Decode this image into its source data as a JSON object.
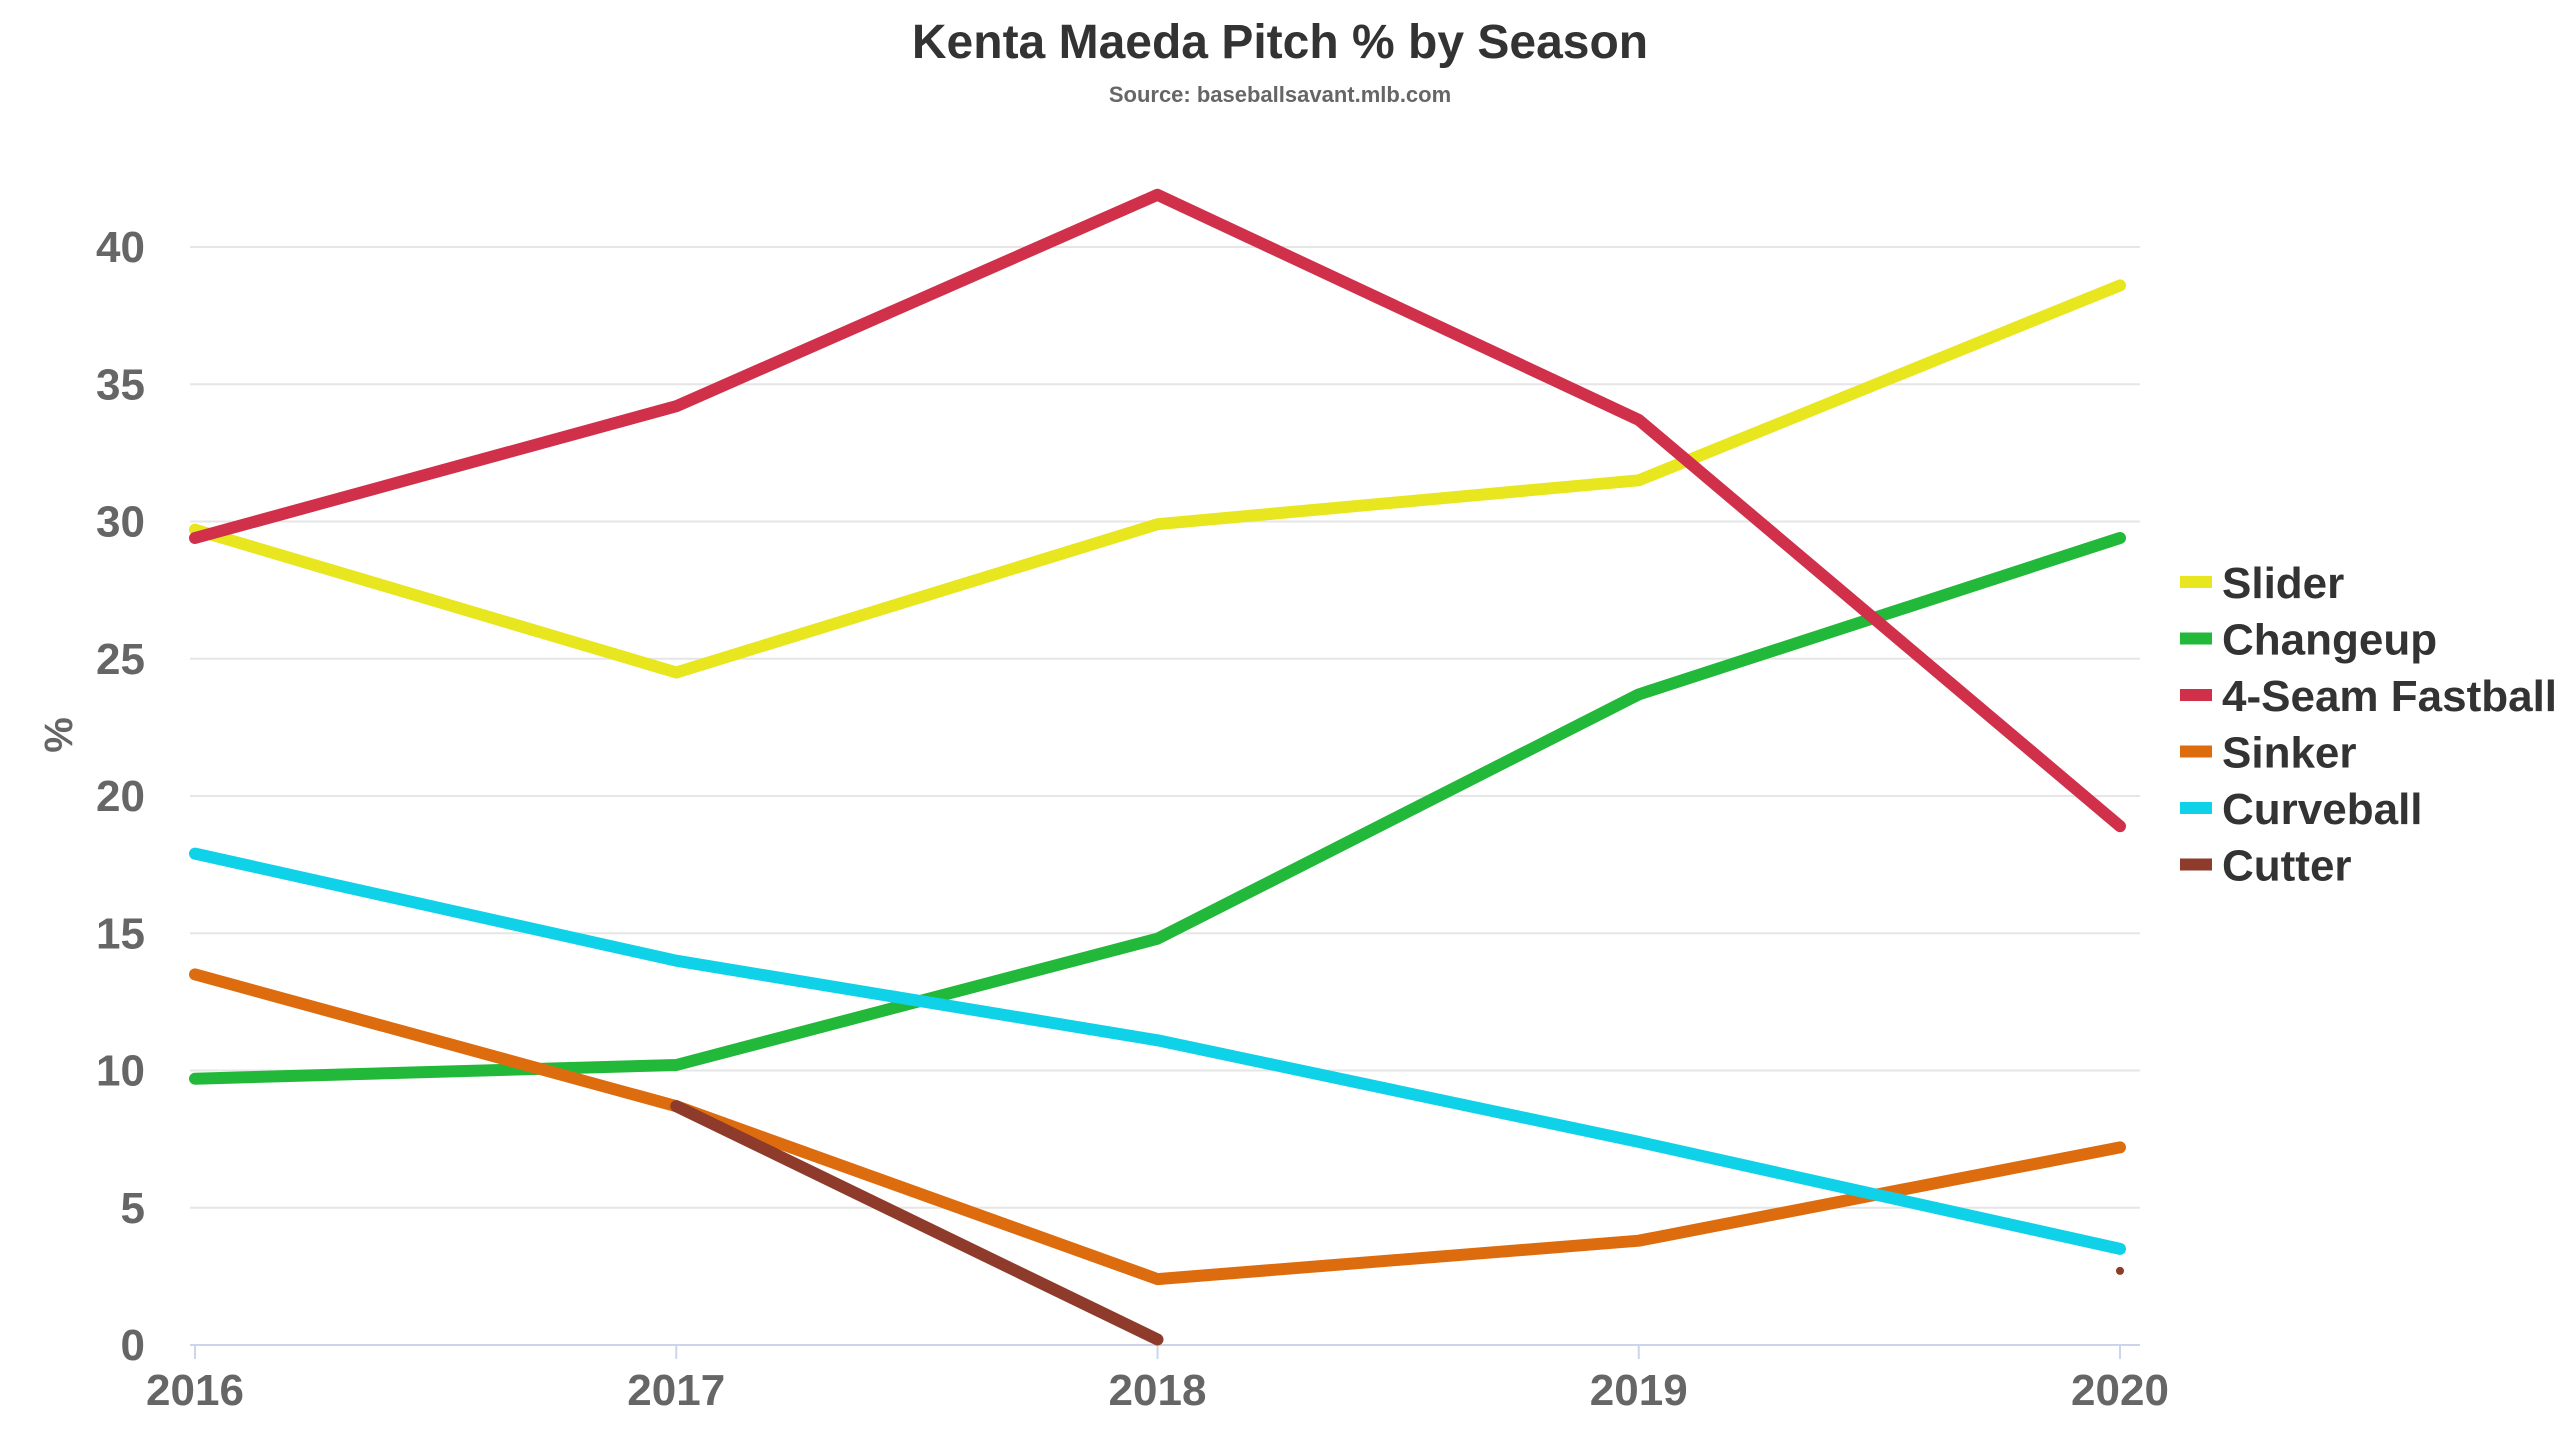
{
  "chart_data": {
    "type": "line",
    "title": "Kenta Maeda Pitch % by Season",
    "subtitle": "Source: baseballsavant.mlb.com",
    "xlabel": "",
    "ylabel": "%",
    "categories": [
      "2016",
      "2017",
      "2018",
      "2019",
      "2020"
    ],
    "ylim": [
      0,
      42
    ],
    "yticks": [
      "0",
      "5",
      "10",
      "15",
      "20",
      "25",
      "30",
      "35",
      "40"
    ],
    "grid": true,
    "legend_position": "right",
    "series": [
      {
        "name": "Slider",
        "color": "#e8e61f",
        "values": [
          29.7,
          24.5,
          29.9,
          31.5,
          38.6
        ]
      },
      {
        "name": "Changeup",
        "color": "#22b83a",
        "values": [
          9.7,
          10.2,
          14.8,
          23.7,
          29.4
        ]
      },
      {
        "name": "4-Seam Fastball",
        "color": "#d0304a",
        "values": [
          29.4,
          34.2,
          41.9,
          33.7,
          18.9
        ]
      },
      {
        "name": "Sinker",
        "color": "#dd6c0f",
        "values": [
          13.5,
          8.7,
          2.4,
          3.8,
          7.2
        ]
      },
      {
        "name": "Curveball",
        "color": "#0fd2e8",
        "values": [
          17.9,
          14.0,
          11.1,
          7.4,
          3.5
        ]
      },
      {
        "name": "Cutter",
        "color": "#8e3b2c",
        "values": [
          null,
          8.7,
          0.2,
          null,
          2.7
        ]
      }
    ]
  }
}
